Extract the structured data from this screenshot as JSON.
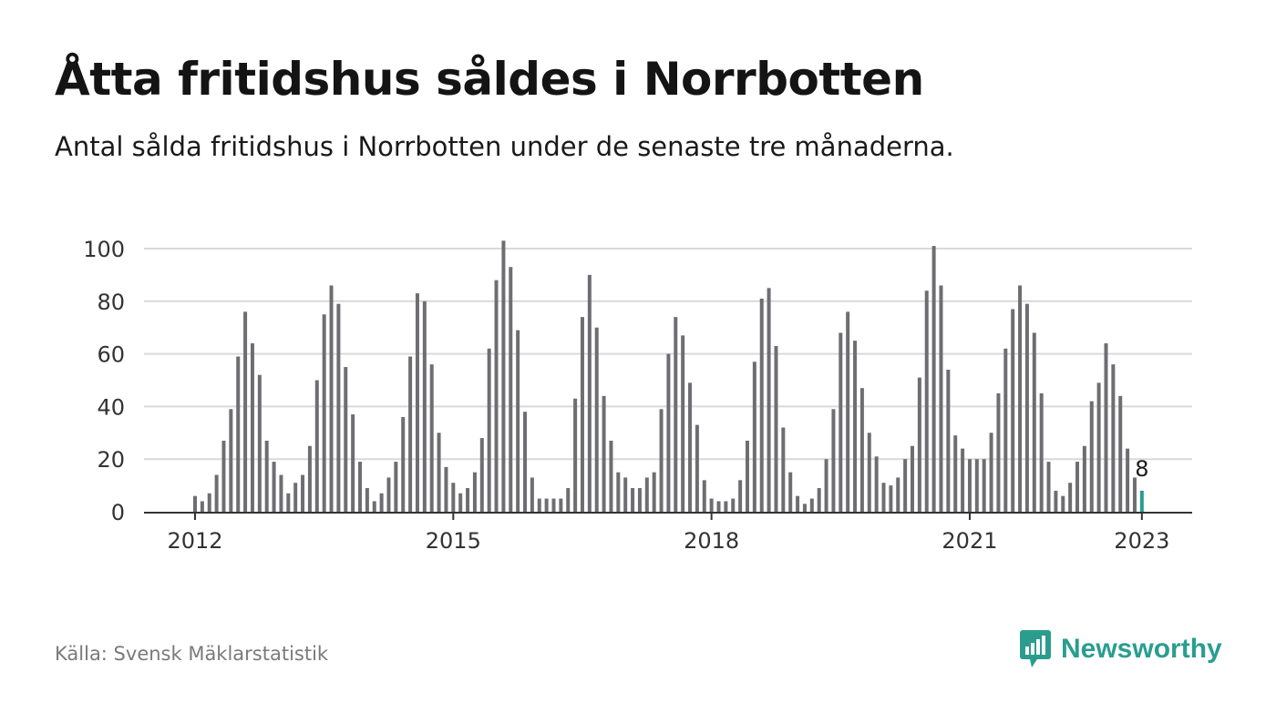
{
  "header": {
    "title": "Åtta fritidshus såldes i Norrbotten",
    "subtitle": "Antal sålda fritidshus i Norrbotten under de senaste tre månaderna."
  },
  "footer": {
    "source": "Källa: Svensk Mäklarstatistik",
    "brand": "Newsworthy"
  },
  "colors": {
    "bar": "#6e6e72",
    "highlight": "#2a9d8f",
    "grid": "#d9d9d9",
    "axis": "#333333",
    "brand": "#2a9d8f"
  },
  "chart_data": {
    "type": "bar",
    "title": "",
    "xlabel": "",
    "ylabel": "",
    "ylim": [
      0,
      100
    ],
    "yticks": [
      0,
      20,
      40,
      60,
      80,
      100
    ],
    "x_tick_labels": [
      "2012",
      "2015",
      "2018",
      "2021",
      "2023"
    ],
    "x_tick_index": [
      0,
      36,
      72,
      108,
      132
    ],
    "grid": true,
    "first_month": "2012-01",
    "highlight_label": "8",
    "values": [
      6,
      4,
      7,
      14,
      27,
      39,
      59,
      76,
      64,
      52,
      27,
      19,
      14,
      7,
      11,
      14,
      25,
      50,
      75,
      86,
      79,
      55,
      37,
      19,
      9,
      4,
      7,
      13,
      19,
      36,
      59,
      83,
      80,
      56,
      30,
      17,
      11,
      7,
      9,
      15,
      28,
      62,
      88,
      103,
      93,
      69,
      38,
      13,
      5,
      5,
      5,
      5,
      9,
      43,
      74,
      90,
      70,
      44,
      27,
      15,
      13,
      9,
      9,
      13,
      15,
      39,
      60,
      74,
      67,
      49,
      33,
      12,
      5,
      4,
      4,
      5,
      12,
      27,
      57,
      81,
      85,
      63,
      32,
      15,
      6,
      3,
      5,
      9,
      20,
      39,
      68,
      76,
      65,
      47,
      30,
      21,
      11,
      10,
      13,
      20,
      25,
      51,
      84,
      101,
      86,
      54,
      29,
      24,
      20,
      20,
      20,
      30,
      45,
      62,
      77,
      86,
      79,
      68,
      45,
      19,
      8,
      6,
      11,
      19,
      25,
      42,
      49,
      64,
      56,
      44,
      24,
      13,
      8
    ]
  }
}
